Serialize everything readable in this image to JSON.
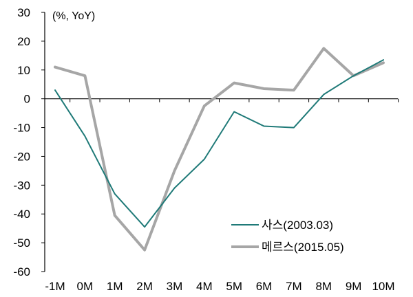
{
  "chart_data": {
    "type": "line",
    "unit_label": "(%, YoY)",
    "categories": [
      "-1M",
      "0M",
      "1M",
      "2M",
      "3M",
      "4M",
      "5M",
      "6M",
      "7M",
      "8M",
      "9M",
      "10M"
    ],
    "ylim": [
      -60,
      30
    ],
    "yticks": [
      30,
      20,
      10,
      0,
      -10,
      -20,
      -30,
      -40,
      -50,
      -60
    ],
    "grid": false,
    "legend_position": "bottom-right",
    "series": [
      {
        "name": "사스(2003.03)",
        "color": "#1f7a78",
        "values": [
          3,
          -13,
          -33,
          -44.5,
          -31,
          -21,
          -4.5,
          -9.5,
          -10,
          1.5,
          8,
          13.5
        ]
      },
      {
        "name": "메르스(2015.05)",
        "color": "#a6a6a6",
        "values": [
          11,
          8,
          -40.5,
          -52.5,
          -25,
          -2.5,
          5.5,
          3.5,
          3,
          17.5,
          8,
          12.5
        ]
      }
    ]
  }
}
